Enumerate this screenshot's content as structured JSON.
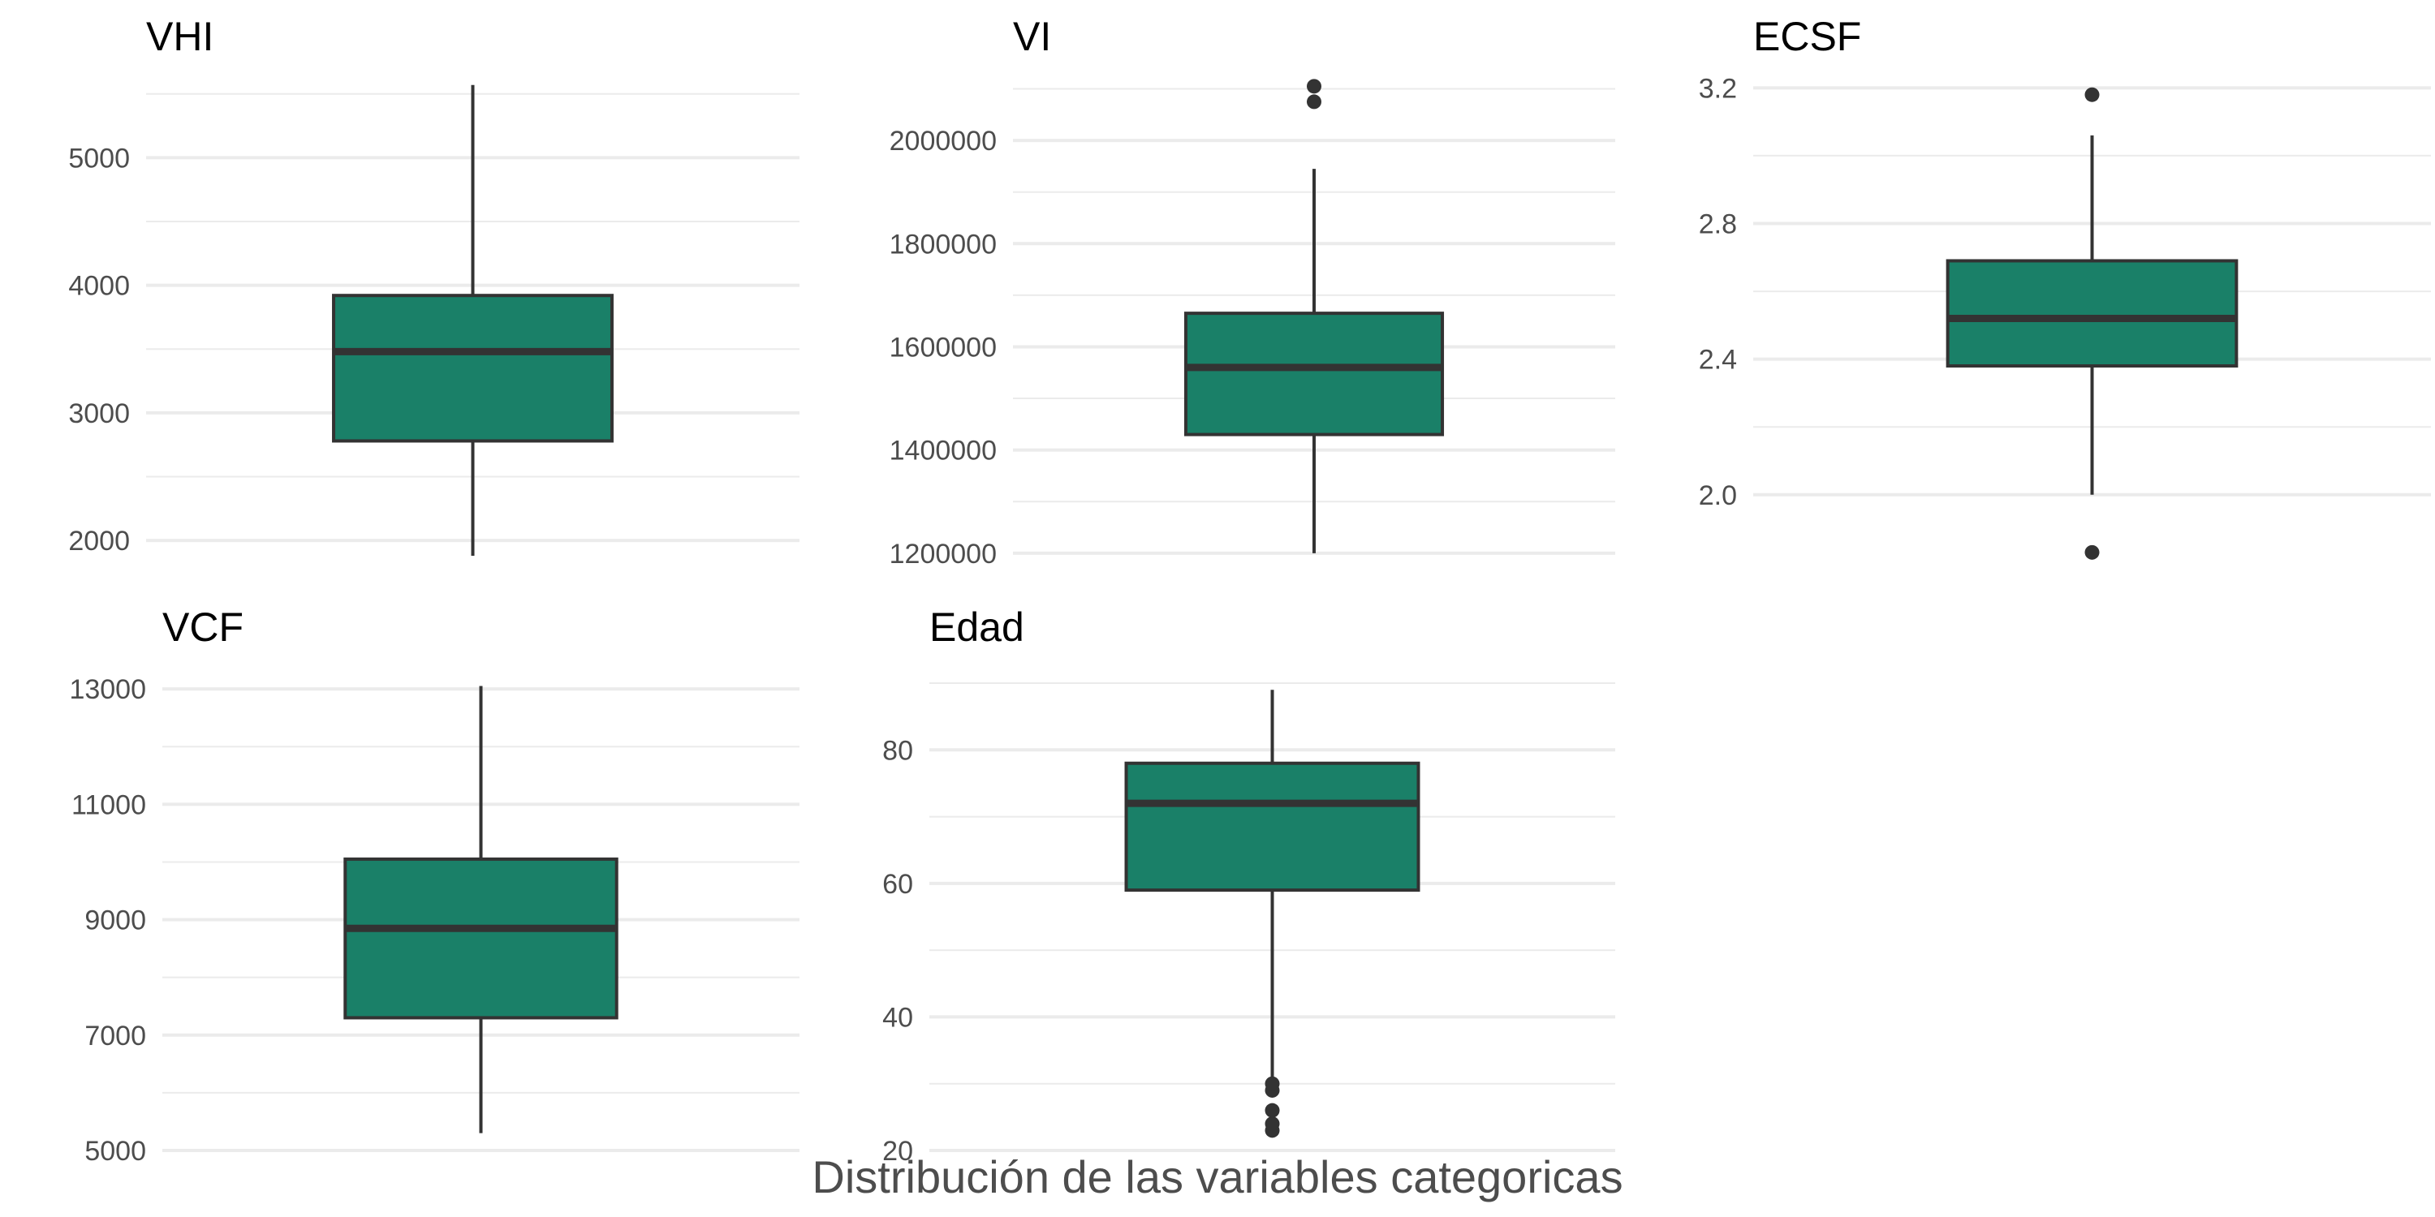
{
  "figure": {
    "caption": "Distribución de las variables categoricas",
    "box_fill": "#1a8068",
    "box_stroke": "#333333",
    "grid_color": "#ebebeb",
    "tick_color": "#4d4d4d"
  },
  "chart_data": [
    {
      "type": "box",
      "title": "VHI",
      "xlabel": "",
      "ylabel": "",
      "grid": true,
      "ylim": [
        1880,
        5600
      ],
      "yticks": [
        2000,
        3000,
        4000,
        5000
      ],
      "ytick_labels": [
        "2000",
        "3000",
        "4000",
        "5000"
      ],
      "minor_yticks": [
        2500,
        3500,
        4500,
        5500
      ],
      "box": {
        "whisker_low": 1880,
        "q1": 2780,
        "median": 3480,
        "q3": 3920,
        "whisker_high": 5570
      },
      "outliers": []
    },
    {
      "type": "box",
      "title": "VI",
      "xlabel": "",
      "ylabel": "",
      "grid": true,
      "ylim": [
        1195000,
        2115000
      ],
      "yticks": [
        1200000,
        1400000,
        1600000,
        1800000,
        2000000
      ],
      "ytick_labels": [
        "1200000",
        "1400000",
        "1600000",
        "1800000",
        "2000000"
      ],
      "minor_yticks": [
        1300000,
        1500000,
        1700000,
        1900000,
        2100000
      ],
      "box": {
        "whisker_low": 1200000,
        "q1": 1430000,
        "median": 1560000,
        "q3": 1665000,
        "whisker_high": 1945000
      },
      "outliers": [
        2075000,
        2105000
      ]
    },
    {
      "type": "box",
      "title": "ECSF",
      "xlabel": "",
      "ylabel": "",
      "grid": true,
      "ylim": [
        1.82,
        3.22
      ],
      "yticks": [
        2.0,
        2.4,
        2.8,
        3.2
      ],
      "ytick_labels": [
        "2.0",
        "2.4",
        "2.8",
        "3.2"
      ],
      "minor_yticks": [
        1.8,
        2.2,
        2.6,
        3.0
      ],
      "box": {
        "whisker_low": 2.0,
        "q1": 2.38,
        "median": 2.52,
        "q3": 2.69,
        "whisker_high": 3.06
      },
      "outliers": [
        1.83,
        3.18
      ]
    },
    {
      "type": "box",
      "title": "VCF",
      "xlabel": "",
      "ylabel": "",
      "grid": true,
      "ylim": [
        5000,
        13100
      ],
      "yticks": [
        5000,
        7000,
        9000,
        11000,
        13000
      ],
      "ytick_labels": [
        "5000",
        "7000",
        "9000",
        "11000",
        "13000"
      ],
      "minor_yticks": [
        6000,
        8000,
        10000,
        12000
      ],
      "box": {
        "whisker_low": 5300,
        "q1": 7300,
        "median": 8850,
        "q3": 10050,
        "whisker_high": 13050
      },
      "outliers": []
    },
    {
      "type": "box",
      "title": "Edad",
      "xlabel": "",
      "ylabel": "",
      "grid": true,
      "ylim": [
        20,
        90
      ],
      "yticks": [
        20,
        40,
        60,
        80
      ],
      "ytick_labels": [
        "20",
        "40",
        "60",
        "80"
      ],
      "minor_yticks": [
        30,
        50,
        70,
        90
      ],
      "box": {
        "whisker_low": 31,
        "q1": 59,
        "median": 72,
        "q3": 78,
        "whisker_high": 89
      },
      "outliers": [
        23,
        24,
        26,
        29,
        30
      ]
    }
  ]
}
